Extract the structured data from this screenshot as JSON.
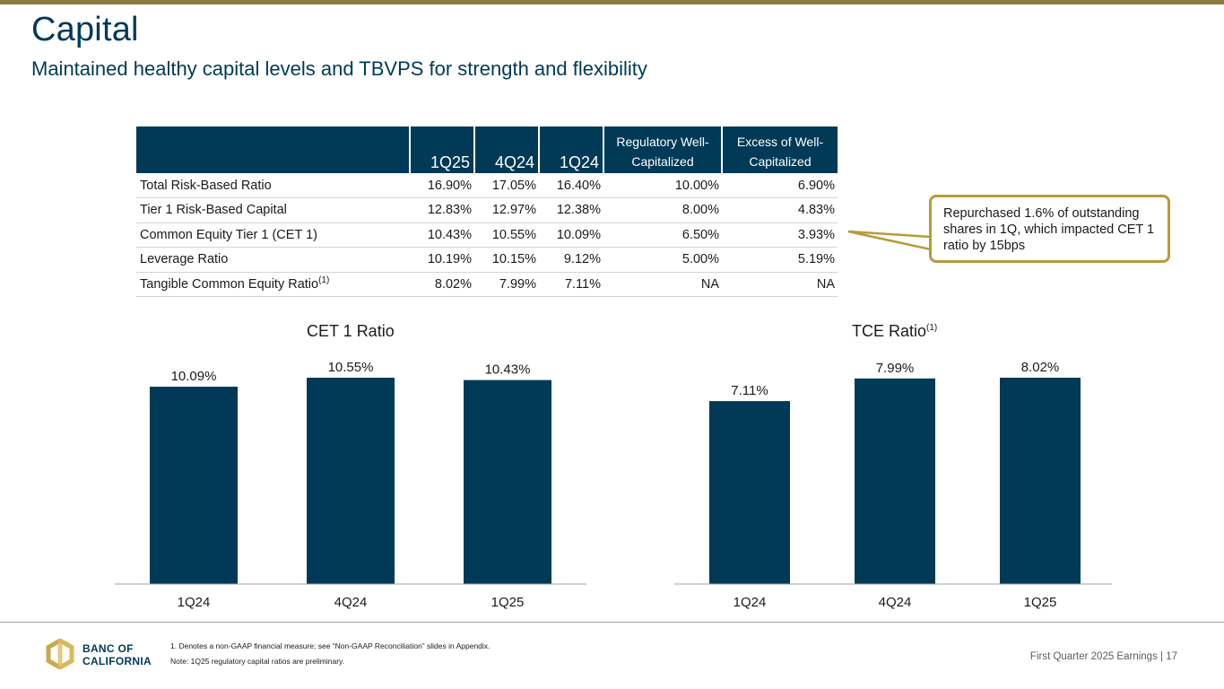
{
  "header": {
    "title": "Capital",
    "subtitle": "Maintained healthy capital levels and TBVPS for strength and flexibility"
  },
  "table": {
    "columns": [
      "1Q25",
      "4Q24",
      "1Q24",
      "Regulatory Well-Capitalized",
      "Excess of Well-Capitalized"
    ],
    "rows": [
      {
        "label": "Total Risk-Based Ratio",
        "sup": "",
        "values": [
          "16.90%",
          "17.05%",
          "16.40%",
          "10.00%",
          "6.90%"
        ]
      },
      {
        "label": "Tier 1 Risk-Based Capital",
        "sup": "",
        "values": [
          "12.83%",
          "12.97%",
          "12.38%",
          "8.00%",
          "4.83%"
        ]
      },
      {
        "label": "Common Equity Tier 1 (CET 1)",
        "sup": "",
        "values": [
          "10.43%",
          "10.55%",
          "10.09%",
          "6.50%",
          "3.93%"
        ]
      },
      {
        "label": "Leverage Ratio",
        "sup": "",
        "values": [
          "10.19%",
          "10.15%",
          "9.12%",
          "5.00%",
          "5.19%"
        ]
      },
      {
        "label": "Tangible Common Equity Ratio",
        "sup": "(1)",
        "values": [
          "8.02%",
          "7.99%",
          "7.11%",
          "NA",
          "NA"
        ]
      }
    ]
  },
  "callout": {
    "text": "Repurchased 1.6% of outstanding shares in 1Q, which impacted CET 1 ratio by 15bps"
  },
  "chart_data": [
    {
      "type": "bar",
      "title": "CET 1 Ratio",
      "title_sup": "",
      "categories": [
        "1Q24",
        "4Q24",
        "1Q25"
      ],
      "values": [
        10.09,
        10.55,
        10.43
      ],
      "data_labels": [
        "10.09%",
        "10.55%",
        "10.43%"
      ],
      "ylim": [
        0,
        10.55
      ],
      "color": "#003a57"
    },
    {
      "type": "bar",
      "title": "TCE Ratio",
      "title_sup": "(1)",
      "categories": [
        "1Q24",
        "4Q24",
        "1Q25"
      ],
      "values": [
        7.11,
        7.99,
        8.02
      ],
      "data_labels": [
        "7.11%",
        "7.99%",
        "8.02%"
      ],
      "ylim": [
        0,
        8.02
      ],
      "color": "#003a57"
    }
  ],
  "footer": {
    "logo_line1": "BANC OF",
    "logo_line2": "CALIFORNIA",
    "footnote1": "1.  Denotes a non-GAAP financial measure; see “Non-GAAP Reconciliation” slides in Appendix.",
    "footnote2": "Note: 1Q25 regulatory capital ratios are preliminary.",
    "page_label": "First Quarter 2025 Earnings |  17"
  },
  "colors": {
    "navy": "#003a57",
    "gold": "#b89a3a",
    "top_bar": "#8c7a3c"
  }
}
